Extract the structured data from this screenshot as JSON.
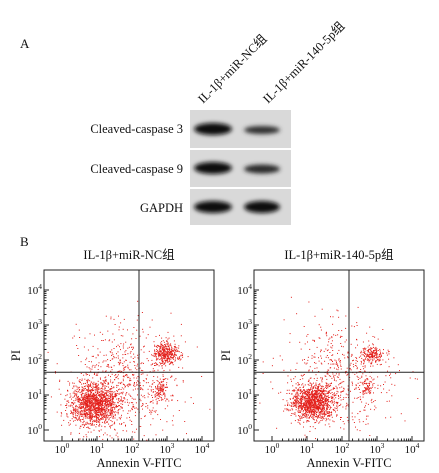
{
  "panel_a": {
    "label": "A",
    "columns": [
      "IL-1β+miR-NC组",
      "IL-1β+miR-140-5p组"
    ],
    "rows": [
      "Cleaved-caspase 3",
      "Cleaved-caspase 9",
      "GAPDH"
    ]
  },
  "panel_b": {
    "label": "B",
    "plots": [
      {
        "title": "IL-1β+miR-NC组"
      },
      {
        "title": "IL-1β+miR-140-5p组"
      }
    ],
    "xticks": [
      {
        "base": "10",
        "exp": "0"
      },
      {
        "base": "10",
        "exp": "1"
      },
      {
        "base": "10",
        "exp": "2"
      },
      {
        "base": "10",
        "exp": "3"
      },
      {
        "base": "10",
        "exp": "4"
      }
    ],
    "yticks": [
      {
        "base": "10",
        "exp": "0"
      },
      {
        "base": "10",
        "exp": "1"
      },
      {
        "base": "10",
        "exp": "2"
      },
      {
        "base": "10",
        "exp": "3"
      },
      {
        "base": "10",
        "exp": "4"
      }
    ],
    "xlabel": "Annexin V-FITC",
    "ylabel": "PI"
  }
}
